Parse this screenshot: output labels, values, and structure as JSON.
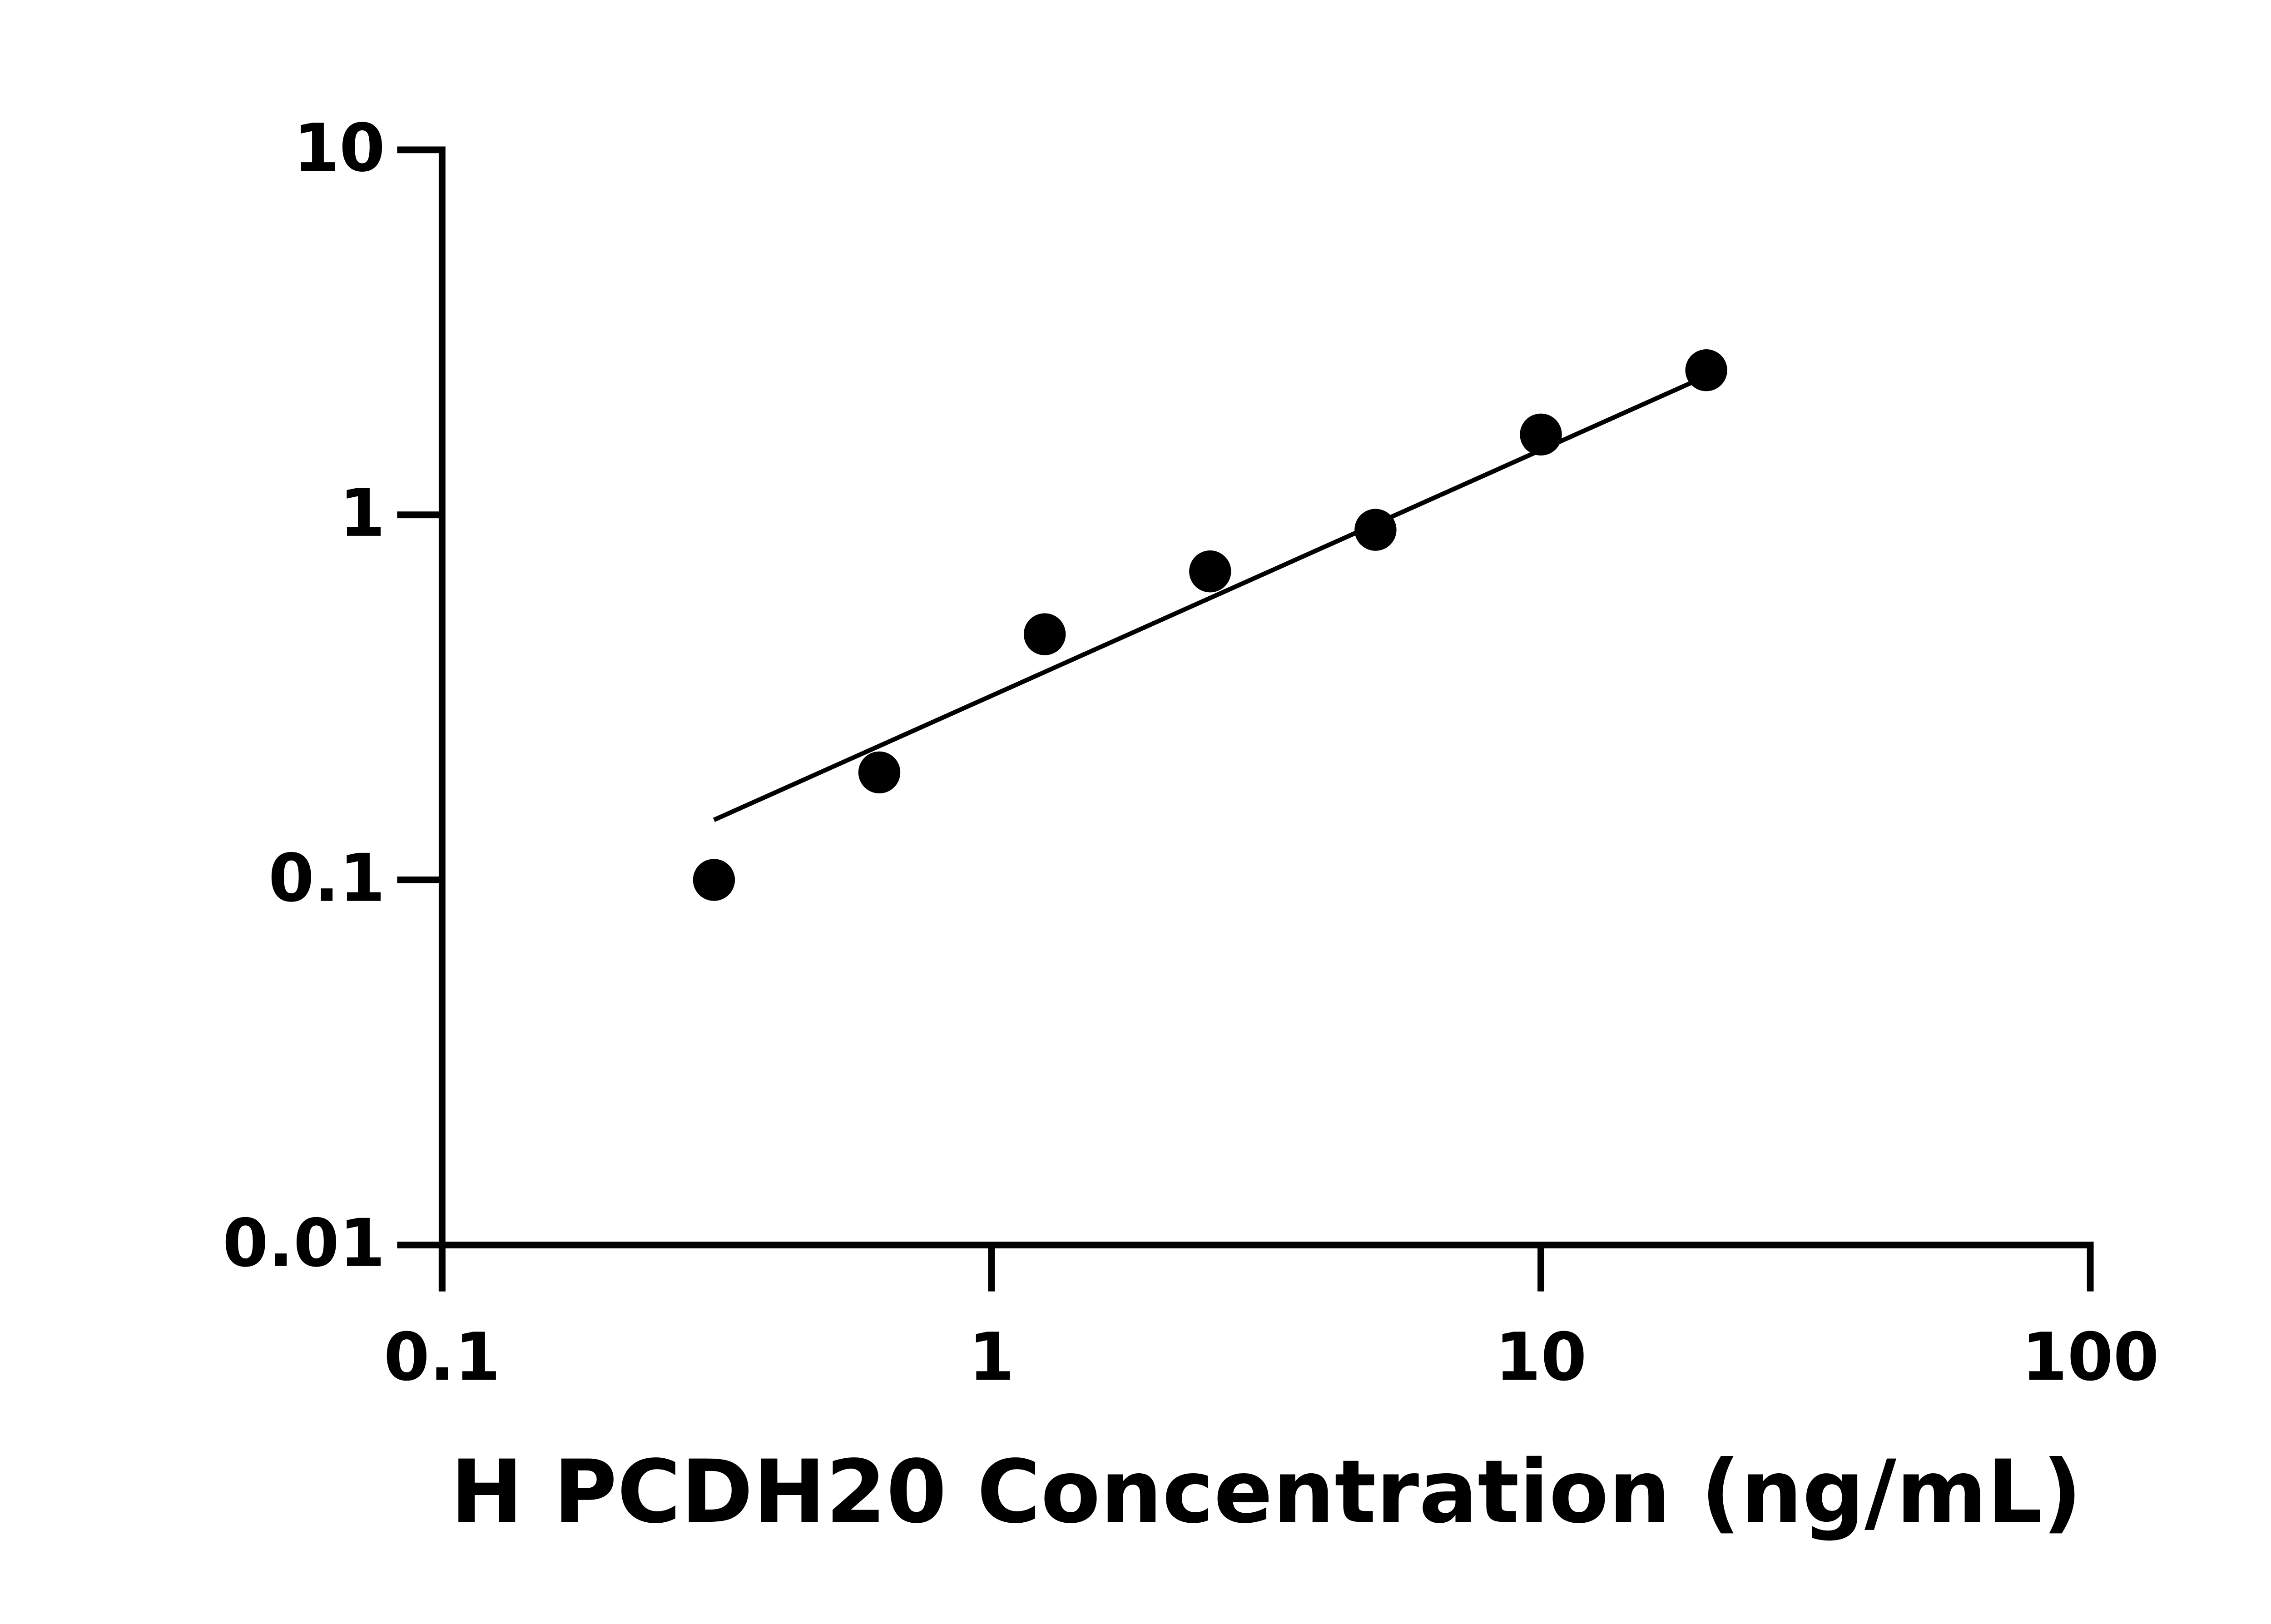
{
  "chart_data": {
    "type": "scatter",
    "x_label": "H PCDH20 Concentration (ng/mL)",
    "x": [
      0.3125,
      0.625,
      1.25,
      2.5,
      5,
      10,
      20
    ],
    "values": [
      0.1,
      0.197,
      0.471,
      0.7,
      0.91,
      1.66,
      2.49
    ],
    "color": "#000000",
    "fit": {
      "x": [
        0.3125,
        20
      ],
      "values": [
        0.146,
        2.4
      ]
    },
    "xlog": true,
    "ylog": true,
    "xlim": [
      0.1,
      100
    ],
    "ylim": [
      0.01,
      10
    ],
    "xticks": [
      0.1,
      1,
      10,
      100
    ],
    "yticks": [
      0.01,
      0.1,
      1,
      10
    ]
  }
}
